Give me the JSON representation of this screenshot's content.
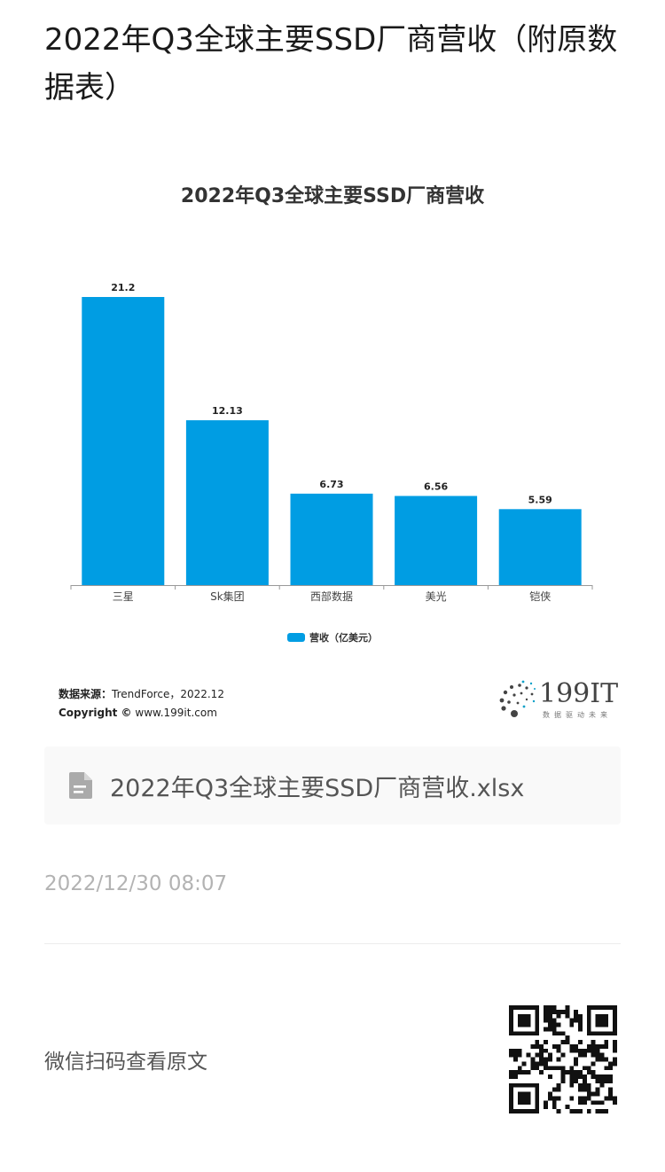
{
  "article": {
    "title": "2022年Q3全球主要SSD厂商营收（附原数据表）"
  },
  "chart_data": {
    "type": "bar",
    "title": "2022年Q3全球主要SSD厂商营收",
    "categories": [
      "三星",
      "Sk集团",
      "西部数据",
      "美光",
      "铠侠"
    ],
    "series": [
      {
        "name": "营收（亿美元）",
        "values": [
          21.2,
          12.13,
          6.73,
          6.56,
          5.59
        ]
      }
    ],
    "value_labels": [
      "21.2",
      "12.13",
      "6.73",
      "6.56",
      "5.59"
    ],
    "ylim": [
      0,
      21.2
    ],
    "grid": false,
    "legend_position": "bottom",
    "bar_color": "#009de3"
  },
  "source": {
    "label": "数据来源：",
    "value": "TrendForce，2022.12",
    "copyright_label": "Copyright ©",
    "copyright_value": "www.199it.com"
  },
  "logo": {
    "text": "199IT",
    "subtitle": "数据驱动未来"
  },
  "attachment": {
    "icon": "document-icon",
    "filename": "2022年Q3全球主要SSD厂商营收.xlsx"
  },
  "published_at": "2022/12/30 08:07",
  "footer": {
    "wechat_label": "微信扫码查看原文",
    "qr_icon": "qr-code"
  }
}
